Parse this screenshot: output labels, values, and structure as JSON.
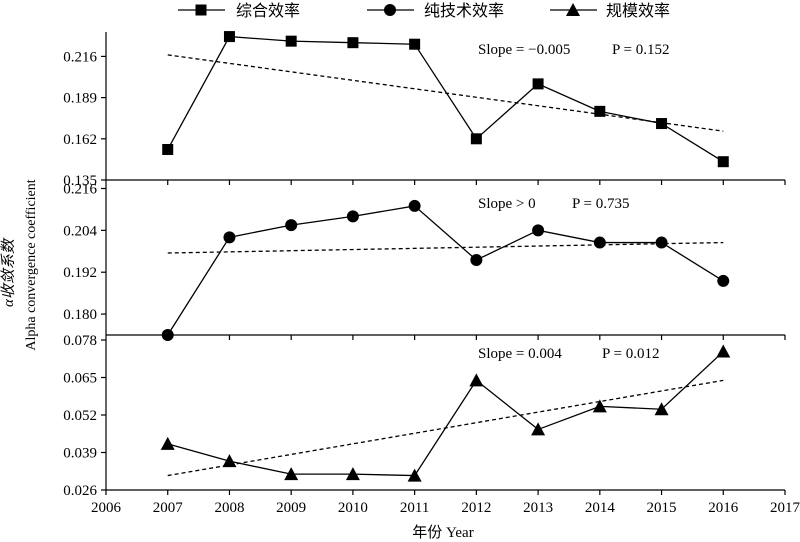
{
  "legend": [
    {
      "label": "综合效率",
      "marker": "square"
    },
    {
      "label": "纯技术效率",
      "marker": "circle"
    },
    {
      "label": "规模效率",
      "marker": "triangle"
    }
  ],
  "ylabel_cn": "α收敛系数",
  "ylabel_en": "Alpha convergence coefficient",
  "xlabel": "年份 Year",
  "chart_data": [
    {
      "type": "line",
      "series": [
        {
          "name": "综合效率",
          "marker": "square",
          "x": [
            2007,
            2008,
            2009,
            2010,
            2011,
            2012,
            2013,
            2014,
            2015,
            2016
          ],
          "values": [
            0.155,
            0.229,
            0.226,
            0.225,
            0.224,
            0.162,
            0.198,
            0.18,
            0.172,
            0.147
          ]
        }
      ],
      "trend": {
        "x": [
          2007,
          2016
        ],
        "y": [
          0.217,
          0.167
        ]
      },
      "annotation": {
        "slope_text": "Slope = −0.005",
        "p_text": "P = 0.152"
      },
      "xlim": [
        2006,
        2017
      ],
      "ylim": [
        0.135,
        0.232
      ],
      "yticks": [
        "0.135",
        "0.162",
        "0.189",
        "0.216"
      ]
    },
    {
      "type": "line",
      "series": [
        {
          "name": "纯技术效率",
          "marker": "circle",
          "x": [
            2007,
            2008,
            2009,
            2010,
            2011,
            2012,
            2013,
            2014,
            2015,
            2016
          ],
          "values": [
            0.174,
            0.202,
            0.2055,
            0.208,
            0.211,
            0.1955,
            0.204,
            0.2005,
            0.2005,
            0.1895
          ]
        }
      ],
      "trend": {
        "x": [
          2007,
          2016
        ],
        "y": [
          0.1975,
          0.2005
        ]
      },
      "annotation": {
        "slope_text": "Slope > 0",
        "p_text": "P = 0.735"
      },
      "xlim": [
        2006,
        2017
      ],
      "ylim": [
        0.174,
        0.217
      ],
      "yticks": [
        "0.180",
        "0.192",
        "0.204",
        "0.216"
      ]
    },
    {
      "type": "line",
      "series": [
        {
          "name": "规模效率",
          "marker": "triangle",
          "x": [
            2007,
            2008,
            2009,
            2010,
            2011,
            2012,
            2013,
            2014,
            2015,
            2016
          ],
          "values": [
            0.042,
            0.036,
            0.0315,
            0.0315,
            0.031,
            0.064,
            0.047,
            0.055,
            0.054,
            0.074
          ]
        }
      ],
      "trend": {
        "x": [
          2007,
          2016
        ],
        "y": [
          0.031,
          0.064
        ]
      },
      "annotation": {
        "slope_text": "Slope = 0.004",
        "p_text": "P = 0.012"
      },
      "xlim": [
        2006,
        2017
      ],
      "ylim": [
        0.026,
        0.078
      ],
      "yticks": [
        "0.026",
        "0.039",
        "0.052",
        "0.065",
        "0.078"
      ],
      "xticks": [
        "2006",
        "2007",
        "2008",
        "2009",
        "2010",
        "2011",
        "2012",
        "2013",
        "2014",
        "2015",
        "2016",
        "2017"
      ]
    }
  ]
}
